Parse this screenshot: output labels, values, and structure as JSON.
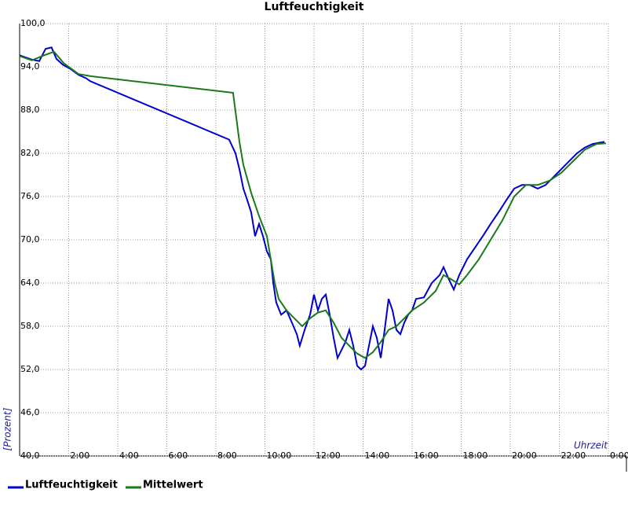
{
  "chart_data": {
    "type": "line",
    "title": "Luftfeuchtigkeit",
    "y_label": "[Prozent]",
    "x_label": "Uhrzeit",
    "xlim": [
      0,
      24
    ],
    "ylim": [
      40,
      100
    ],
    "xticks": [
      {
        "value": 2,
        "label": "2:00"
      },
      {
        "value": 4,
        "label": "4:00"
      },
      {
        "value": 6,
        "label": "6:00"
      },
      {
        "value": 8,
        "label": "8:00"
      },
      {
        "value": 10,
        "label": "10:00"
      },
      {
        "value": 12,
        "label": "12:00"
      },
      {
        "value": 14,
        "label": "14:00"
      },
      {
        "value": 16,
        "label": "16:00"
      },
      {
        "value": 18,
        "label": "18:00"
      },
      {
        "value": 20,
        "label": "20:00"
      },
      {
        "value": 22,
        "label": "22:00"
      },
      {
        "value": 24,
        "label": "0:00"
      }
    ],
    "yticks": [
      {
        "value": 40,
        "label": "40,0"
      },
      {
        "value": 46,
        "label": "46,0"
      },
      {
        "value": 52,
        "label": "52,0"
      },
      {
        "value": 58,
        "label": "58,0"
      },
      {
        "value": 64,
        "label": "64,0"
      },
      {
        "value": 70,
        "label": "70,0"
      },
      {
        "value": 76,
        "label": "76,0"
      },
      {
        "value": 82,
        "label": "82,0"
      },
      {
        "value": 88,
        "label": "88,0"
      },
      {
        "value": 94,
        "label": "94,0"
      },
      {
        "value": 100,
        "label": "100,0"
      }
    ],
    "grid": true,
    "series": [
      {
        "name": "Luftfeuchtigkeit",
        "color": "#0000cc",
        "x": [
          0,
          0.5,
          0.8,
          1.06,
          1.3,
          1.5,
          1.76,
          2.08,
          2.4,
          2.72,
          2.88,
          8.54,
          8.8,
          8.96,
          9.12,
          9.28,
          9.44,
          9.6,
          9.76,
          9.92,
          10.08,
          10.24,
          10.34,
          10.46,
          10.66,
          10.88,
          11.1,
          11.3,
          11.42,
          11.62,
          11.84,
          12.0,
          12.16,
          12.32,
          12.48,
          12.64,
          12.8,
          12.96,
          13.12,
          13.28,
          13.44,
          13.6,
          13.76,
          13.92,
          14.08,
          14.24,
          14.4,
          14.56,
          14.72,
          14.88,
          15.04,
          15.2,
          15.36,
          15.52,
          15.68,
          15.84,
          16.0,
          16.16,
          16.48,
          16.8,
          17.12,
          17.28,
          17.5,
          17.7,
          17.92,
          18.24,
          18.56,
          18.88,
          19.2,
          19.52,
          19.84,
          20.16,
          20.48,
          20.8,
          21.12,
          21.44,
          21.76,
          22.08,
          22.4,
          22.72,
          23.04,
          23.36,
          23.84
        ],
        "values": [
          95.6,
          95.0,
          94.8,
          96.5,
          96.7,
          95.1,
          94.3,
          93.7,
          92.9,
          92.4,
          92.0,
          83.9,
          82.0,
          79.8,
          77.1,
          75.5,
          73.8,
          70.5,
          72.2,
          70.5,
          68.4,
          67.3,
          64.0,
          61.3,
          59.6,
          60.2,
          58.5,
          56.9,
          55.3,
          57.5,
          59.6,
          62.4,
          60.2,
          61.8,
          62.4,
          59.6,
          56.4,
          53.6,
          54.7,
          55.8,
          57.5,
          55.3,
          52.5,
          52.0,
          52.5,
          55.3,
          58.0,
          56.4,
          53.6,
          57.5,
          61.8,
          60.2,
          57.5,
          56.9,
          58.5,
          59.6,
          60.2,
          61.8,
          62.0,
          64.0,
          65.1,
          66.2,
          64.5,
          63.1,
          65.1,
          67.3,
          68.9,
          70.5,
          72.2,
          73.8,
          75.5,
          77.1,
          77.6,
          77.6,
          77.1,
          77.6,
          78.7,
          79.8,
          80.9,
          82.0,
          82.8,
          83.3,
          83.6
        ]
      },
      {
        "name": "Mittelwert",
        "color": "#1a7a1a",
        "x": [
          0,
          0.5,
          1.0,
          1.4,
          1.8,
          2.4,
          2.9,
          8.7,
          8.96,
          9.12,
          9.44,
          9.76,
          10.08,
          10.4,
          10.56,
          10.88,
          11.2,
          11.52,
          11.84,
          12.16,
          12.48,
          12.8,
          13.12,
          13.44,
          13.76,
          14.08,
          14.4,
          14.72,
          15.04,
          15.36,
          15.68,
          16.0,
          16.48,
          16.96,
          17.28,
          17.6,
          17.92,
          18.24,
          18.72,
          19.2,
          19.68,
          20.16,
          20.64,
          21.12,
          21.6,
          22.08,
          22.56,
          23.04,
          23.52,
          23.9
        ],
        "values": [
          95.5,
          94.9,
          95.6,
          96.1,
          94.5,
          93.0,
          92.7,
          90.4,
          83.6,
          80.4,
          76.5,
          73.3,
          70.5,
          64.0,
          61.8,
          60.2,
          59.1,
          58.0,
          59.1,
          59.9,
          60.2,
          58.5,
          56.4,
          55.3,
          54.2,
          53.6,
          54.4,
          55.8,
          57.5,
          58.0,
          59.1,
          60.2,
          61.3,
          62.9,
          65.1,
          64.5,
          63.8,
          65.1,
          67.3,
          70.0,
          72.7,
          76.0,
          77.6,
          77.6,
          78.2,
          79.3,
          80.9,
          82.5,
          83.3,
          83.4
        ]
      }
    ]
  }
}
